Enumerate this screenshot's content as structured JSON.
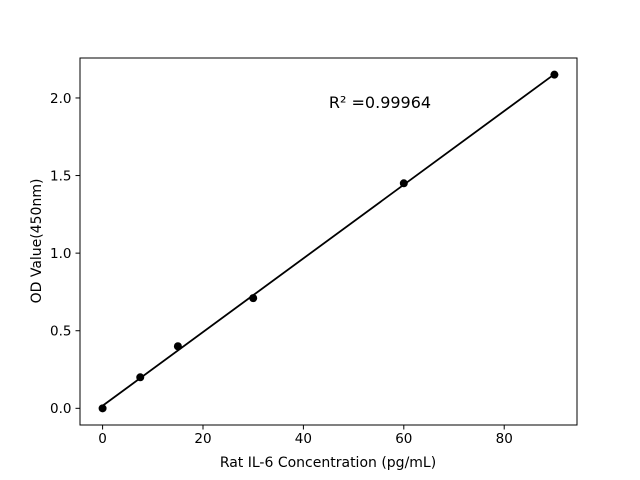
{
  "chart_data": {
    "type": "scatter",
    "title": "",
    "xlabel": "Rat IL-6 Concentration (pg/mL)",
    "ylabel": "OD Value(450nm)",
    "annotation": "R² =0.99964",
    "x": [
      0,
      7.5,
      15,
      30,
      60,
      90
    ],
    "y": [
      0.0,
      0.2,
      0.4,
      0.71,
      1.45,
      2.15
    ],
    "fit_line": {
      "slope": 0.02374,
      "intercept": 0.0166,
      "x_start": 0,
      "x_end": 90
    },
    "xticks": [
      "0",
      "20",
      "40",
      "60",
      "80"
    ],
    "yticks": [
      "0.0",
      "0.5",
      "1.0",
      "1.5",
      "2.0"
    ],
    "xlim": [
      -4.5,
      94.5
    ],
    "ylim": [
      -0.1075,
      2.2575
    ],
    "grid": false,
    "legend": "none",
    "colors": {
      "marker": "#000000",
      "line": "#000000",
      "spine": "#000000",
      "background": "#ffffff"
    }
  }
}
